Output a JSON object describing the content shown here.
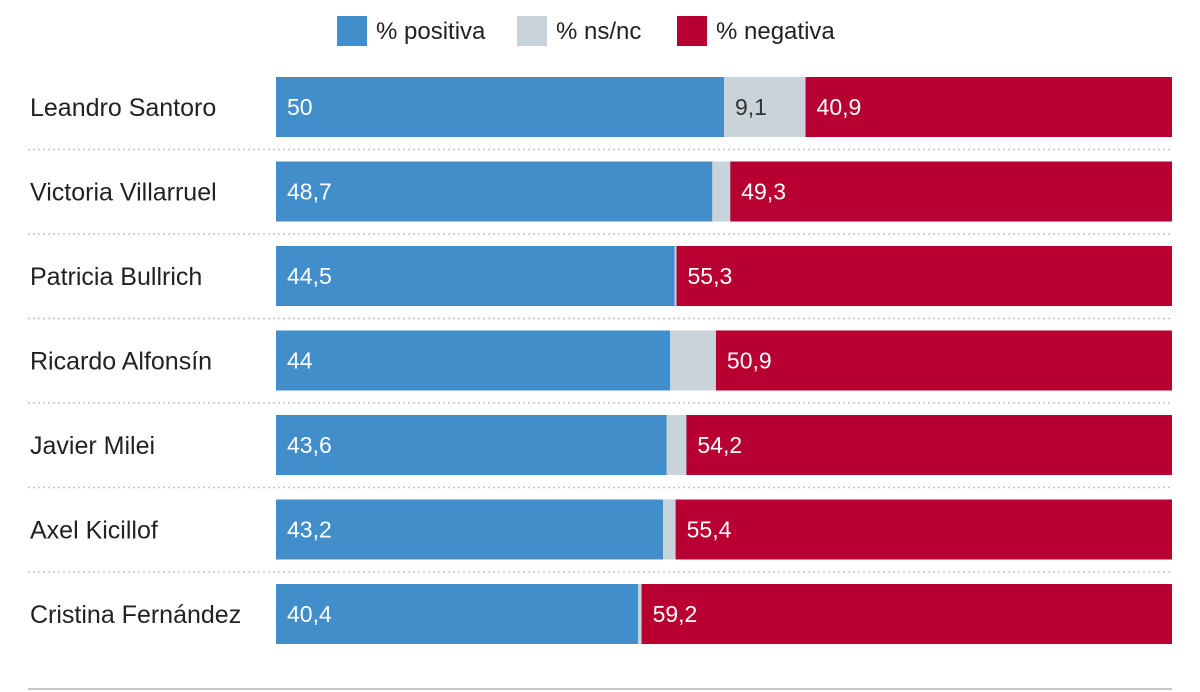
{
  "chart_data": {
    "type": "bar",
    "orientation": "horizontal",
    "stacked": true,
    "categories": [
      "Leandro Santoro",
      "Victoria Villarruel",
      "Patricia Bullrich",
      "Ricardo Alfonsín",
      "Javier Milei",
      "Axel Kicillof",
      "Cristina Fernández"
    ],
    "series": [
      {
        "name": "% positiva",
        "color": "#428ecb",
        "label_color": "#ffffff",
        "values": [
          50,
          48.7,
          44.5,
          44,
          43.6,
          43.2,
          40.4
        ],
        "labels": [
          "50",
          "48,7",
          "44,5",
          "44",
          "43,6",
          "43,2",
          "40,4"
        ]
      },
      {
        "name": "% ns/nc",
        "color": "#c9d3da",
        "label_color": "#333333",
        "values": [
          9.1,
          2,
          0.2,
          5.1,
          2.2,
          1.4,
          0.4
        ],
        "labels": [
          "9,1",
          "",
          "",
          "",
          "",
          "",
          ""
        ]
      },
      {
        "name": "% negativa",
        "color": "#b70031",
        "label_color": "#ffffff",
        "values": [
          40.9,
          49.3,
          55.3,
          50.9,
          54.2,
          55.4,
          59.2
        ],
        "labels": [
          "40,9",
          "49,3",
          "55,3",
          "50,9",
          "54,2",
          "55,4",
          "59,2"
        ]
      }
    ],
    "xlim": [
      0,
      100
    ],
    "legend_position": "top-center",
    "grid": false
  }
}
